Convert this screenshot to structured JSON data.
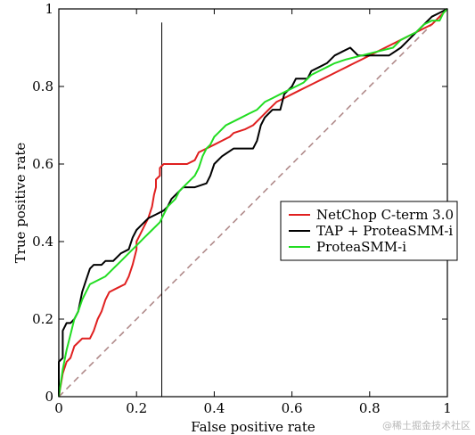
{
  "chart_data": {
    "type": "line",
    "xlabel": "False positive rate",
    "ylabel": "True positive rate",
    "xlim": [
      0,
      1
    ],
    "ylim": [
      0,
      1
    ],
    "grid": false,
    "legend_position": "center-right",
    "x_ticks": [
      {
        "value": 0,
        "label": "0"
      },
      {
        "value": 0.2,
        "label": "0.2"
      },
      {
        "value": 0.4,
        "label": "0.4"
      },
      {
        "value": 0.6,
        "label": "0.6"
      },
      {
        "value": 0.8,
        "label": "0.8"
      },
      {
        "value": 1,
        "label": "1"
      }
    ],
    "y_ticks": [
      {
        "value": 0,
        "label": "0"
      },
      {
        "value": 0.2,
        "label": "0.2"
      },
      {
        "value": 0.4,
        "label": "0.4"
      },
      {
        "value": 0.6,
        "label": "0.6"
      },
      {
        "value": 0.8,
        "label": "0.8"
      },
      {
        "value": 1,
        "label": "1"
      }
    ],
    "reference_lines": {
      "diagonal": {
        "from": [
          0,
          0
        ],
        "to": [
          1,
          1
        ],
        "style": "dashed",
        "color": "#b08a8a"
      },
      "vertical": {
        "x": 0.265,
        "y_range": [
          0,
          0.965
        ],
        "color": "#000000"
      }
    },
    "series": [
      {
        "name": "NetChop C-term 3.0",
        "color": "#e02020",
        "points": [
          [
            0,
            0
          ],
          [
            0.01,
            0.06
          ],
          [
            0.02,
            0.09
          ],
          [
            0.03,
            0.1
          ],
          [
            0.04,
            0.13
          ],
          [
            0.05,
            0.14
          ],
          [
            0.06,
            0.15
          ],
          [
            0.08,
            0.15
          ],
          [
            0.09,
            0.17
          ],
          [
            0.1,
            0.2
          ],
          [
            0.11,
            0.22
          ],
          [
            0.12,
            0.25
          ],
          [
            0.13,
            0.27
          ],
          [
            0.15,
            0.28
          ],
          [
            0.17,
            0.29
          ],
          [
            0.18,
            0.31
          ],
          [
            0.19,
            0.34
          ],
          [
            0.2,
            0.38
          ],
          [
            0.2,
            0.4
          ],
          [
            0.21,
            0.42
          ],
          [
            0.22,
            0.44
          ],
          [
            0.23,
            0.46
          ],
          [
            0.24,
            0.49
          ],
          [
            0.245,
            0.52
          ],
          [
            0.25,
            0.54
          ],
          [
            0.25,
            0.56
          ],
          [
            0.26,
            0.57
          ],
          [
            0.26,
            0.59
          ],
          [
            0.27,
            0.6
          ],
          [
            0.3,
            0.6
          ],
          [
            0.33,
            0.6
          ],
          [
            0.35,
            0.61
          ],
          [
            0.36,
            0.63
          ],
          [
            0.38,
            0.64
          ],
          [
            0.4,
            0.65
          ],
          [
            0.42,
            0.66
          ],
          [
            0.44,
            0.67
          ],
          [
            0.45,
            0.68
          ],
          [
            0.48,
            0.69
          ],
          [
            0.5,
            0.7
          ],
          [
            0.52,
            0.72
          ],
          [
            0.54,
            0.74
          ],
          [
            0.56,
            0.76
          ],
          [
            0.58,
            0.77
          ],
          [
            0.6,
            0.78
          ],
          [
            0.62,
            0.79
          ],
          [
            0.64,
            0.8
          ],
          [
            0.66,
            0.81
          ],
          [
            0.68,
            0.82
          ],
          [
            0.7,
            0.83
          ],
          [
            0.72,
            0.84
          ],
          [
            0.74,
            0.85
          ],
          [
            0.76,
            0.86
          ],
          [
            0.78,
            0.87
          ],
          [
            0.8,
            0.88
          ],
          [
            0.84,
            0.9
          ],
          [
            0.88,
            0.92
          ],
          [
            0.92,
            0.94
          ],
          [
            0.96,
            0.96
          ],
          [
            1,
            1
          ]
        ]
      },
      {
        "name": "TAP + ProteaSMM-i",
        "color": "#000000",
        "points": [
          [
            0,
            0
          ],
          [
            0,
            0.09
          ],
          [
            0.01,
            0.1
          ],
          [
            0.01,
            0.17
          ],
          [
            0.02,
            0.19
          ],
          [
            0.03,
            0.19
          ],
          [
            0.04,
            0.2
          ],
          [
            0.05,
            0.22
          ],
          [
            0.06,
            0.27
          ],
          [
            0.07,
            0.3
          ],
          [
            0.08,
            0.33
          ],
          [
            0.09,
            0.34
          ],
          [
            0.11,
            0.34
          ],
          [
            0.12,
            0.35
          ],
          [
            0.14,
            0.35
          ],
          [
            0.16,
            0.37
          ],
          [
            0.18,
            0.38
          ],
          [
            0.19,
            0.41
          ],
          [
            0.2,
            0.43
          ],
          [
            0.21,
            0.44
          ],
          [
            0.23,
            0.46
          ],
          [
            0.25,
            0.47
          ],
          [
            0.27,
            0.48
          ],
          [
            0.28,
            0.49
          ],
          [
            0.29,
            0.51
          ],
          [
            0.31,
            0.53
          ],
          [
            0.32,
            0.54
          ],
          [
            0.35,
            0.54
          ],
          [
            0.38,
            0.55
          ],
          [
            0.39,
            0.57
          ],
          [
            0.4,
            0.6
          ],
          [
            0.42,
            0.62
          ],
          [
            0.45,
            0.64
          ],
          [
            0.48,
            0.64
          ],
          [
            0.5,
            0.64
          ],
          [
            0.51,
            0.66
          ],
          [
            0.52,
            0.7
          ],
          [
            0.53,
            0.72
          ],
          [
            0.55,
            0.74
          ],
          [
            0.57,
            0.74
          ],
          [
            0.58,
            0.78
          ],
          [
            0.59,
            0.79
          ],
          [
            0.6,
            0.8
          ],
          [
            0.61,
            0.82
          ],
          [
            0.64,
            0.82
          ],
          [
            0.65,
            0.84
          ],
          [
            0.67,
            0.85
          ],
          [
            0.69,
            0.86
          ],
          [
            0.71,
            0.88
          ],
          [
            0.73,
            0.89
          ],
          [
            0.75,
            0.9
          ],
          [
            0.77,
            0.88
          ],
          [
            0.8,
            0.88
          ],
          [
            0.85,
            0.88
          ],
          [
            0.88,
            0.9
          ],
          [
            0.9,
            0.92
          ],
          [
            0.92,
            0.94
          ],
          [
            0.94,
            0.96
          ],
          [
            0.96,
            0.98
          ],
          [
            0.98,
            0.99
          ],
          [
            1,
            1
          ]
        ]
      },
      {
        "name": "ProteaSMM-i",
        "color": "#22dd22",
        "points": [
          [
            0,
            0
          ],
          [
            0.01,
            0.07
          ],
          [
            0.02,
            0.12
          ],
          [
            0.03,
            0.16
          ],
          [
            0.04,
            0.2
          ],
          [
            0.05,
            0.22
          ],
          [
            0.06,
            0.25
          ],
          [
            0.07,
            0.27
          ],
          [
            0.08,
            0.29
          ],
          [
            0.1,
            0.3
          ],
          [
            0.12,
            0.31
          ],
          [
            0.14,
            0.33
          ],
          [
            0.16,
            0.35
          ],
          [
            0.18,
            0.37
          ],
          [
            0.2,
            0.39
          ],
          [
            0.22,
            0.41
          ],
          [
            0.24,
            0.43
          ],
          [
            0.26,
            0.45
          ],
          [
            0.27,
            0.47
          ],
          [
            0.28,
            0.49
          ],
          [
            0.3,
            0.51
          ],
          [
            0.31,
            0.53
          ],
          [
            0.33,
            0.55
          ],
          [
            0.35,
            0.57
          ],
          [
            0.36,
            0.59
          ],
          [
            0.37,
            0.62
          ],
          [
            0.38,
            0.64
          ],
          [
            0.39,
            0.65
          ],
          [
            0.4,
            0.67
          ],
          [
            0.41,
            0.68
          ],
          [
            0.43,
            0.7
          ],
          [
            0.45,
            0.71
          ],
          [
            0.47,
            0.72
          ],
          [
            0.49,
            0.73
          ],
          [
            0.51,
            0.74
          ],
          [
            0.53,
            0.76
          ],
          [
            0.55,
            0.77
          ],
          [
            0.57,
            0.78
          ],
          [
            0.59,
            0.79
          ],
          [
            0.61,
            0.8
          ],
          [
            0.63,
            0.81
          ],
          [
            0.65,
            0.83
          ],
          [
            0.67,
            0.84
          ],
          [
            0.69,
            0.85
          ],
          [
            0.71,
            0.86
          ],
          [
            0.74,
            0.87
          ],
          [
            0.78,
            0.88
          ],
          [
            0.82,
            0.89
          ],
          [
            0.86,
            0.9
          ],
          [
            0.88,
            0.92
          ],
          [
            0.9,
            0.93
          ],
          [
            0.92,
            0.94
          ],
          [
            0.94,
            0.96
          ],
          [
            0.96,
            0.97
          ],
          [
            0.98,
            0.97
          ],
          [
            0.99,
            0.99
          ],
          [
            1,
            1
          ]
        ]
      }
    ]
  },
  "watermark": "@稀土掘金技术社区"
}
